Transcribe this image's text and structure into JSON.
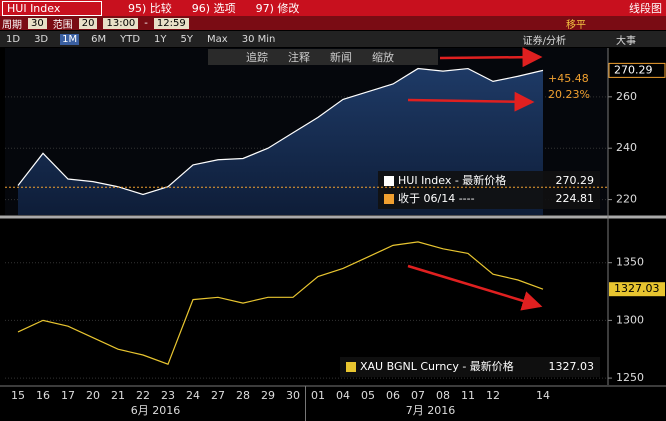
{
  "toolbar": {
    "security": "HUI Index",
    "menu": [
      "95) 比较",
      "96) 选项",
      "97) 修改"
    ],
    "view": "线段图",
    "period_label": "周期",
    "period": "30",
    "range_label": "范围",
    "range": "20",
    "start": "13:00",
    "sep": "-",
    "end": "12:59",
    "right": "移平",
    "ranges": [
      "1D",
      "3D",
      "1M",
      "6M",
      "YTD",
      "1Y",
      "5Y",
      "Max",
      "30 Min"
    ],
    "selected_range": 2,
    "tools_right": [
      "证券/分析",
      "大事"
    ],
    "actions": [
      "追踪",
      "注释",
      "新闻",
      "缩放"
    ]
  },
  "chart_data": [
    {
      "type": "area",
      "ylim": [
        214,
        279
      ],
      "yticks": [
        220,
        240,
        260
      ],
      "series": [
        {
          "name": "HUI Index - 最新价格",
          "color": "#ffffff",
          "values": [
            225.5,
            238,
            228,
            227,
            225,
            222,
            225,
            233.5,
            235.5,
            236,
            240,
            246,
            252,
            259,
            262,
            265,
            271,
            270,
            271,
            266,
            268,
            270.29
          ]
        }
      ],
      "reference": {
        "name": "收于 06/14 ----",
        "value": 224.81,
        "color": "#f0a030"
      },
      "annotations": [
        "+45.48",
        "20.23%"
      ]
    },
    {
      "type": "line",
      "ylim": [
        1244,
        1387
      ],
      "yticks": [
        1250,
        1300,
        1350
      ],
      "categories": [
        "15",
        "16",
        "17",
        "20",
        "21",
        "22",
        "23",
        "24",
        "27",
        "28",
        "29",
        "30",
        "01",
        "04",
        "05",
        "06",
        "07",
        "08",
        "11",
        "12",
        null,
        "14"
      ],
      "month_labels": [
        "6月 2016",
        "7月 2016"
      ],
      "series": [
        {
          "name": "XAU BGNL Curncy - 最新价格",
          "color": "#e8c530",
          "values": [
            1290,
            1300,
            1295,
            1285,
            1275,
            1270,
            1262,
            1318,
            1320,
            1315,
            1320,
            1320,
            1338,
            1345,
            1355,
            1365,
            1368,
            1362,
            1358,
            1340,
            1335,
            1327.03
          ]
        }
      ]
    }
  ]
}
